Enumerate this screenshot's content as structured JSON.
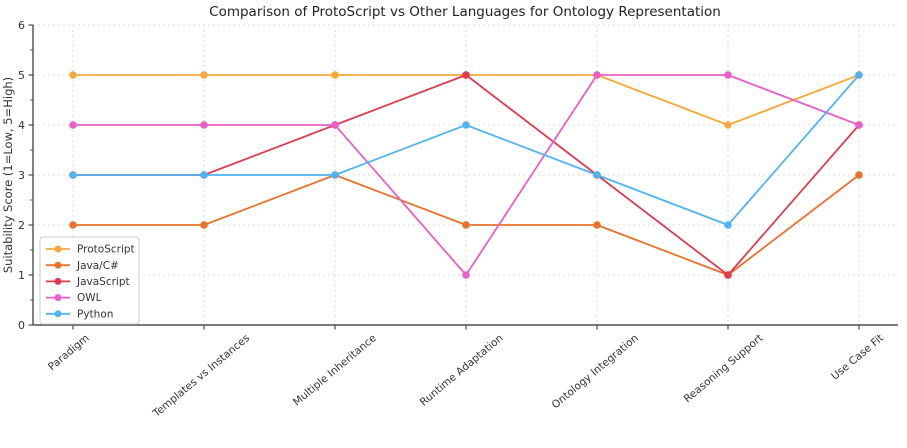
{
  "chart_data": {
    "type": "line",
    "title": "Comparison of ProtoScript vs Other Languages for Ontology Representation",
    "ylabel": "Suitability Score (1=Low, 5=High)",
    "xlabel": "",
    "ylim": [
      0,
      6
    ],
    "yticks": [
      0,
      1,
      2,
      3,
      4,
      5,
      6
    ],
    "grid": true,
    "grid_style": "dotted",
    "legend_position": "lower left",
    "marker": "circle",
    "categories": [
      "Paradigm",
      "Templates vs Instances",
      "Multiple Inheritance",
      "Runtime Adaptation",
      "Ontology Integration",
      "Reasoning Support",
      "Use Case Fit"
    ],
    "series": [
      {
        "name": "ProtoScript",
        "color": "#F5A93B",
        "values": [
          5,
          5,
          5,
          5,
          5,
          4,
          5
        ]
      },
      {
        "name": "Java/C#",
        "color": "#E8722C",
        "values": [
          2,
          2,
          3,
          2,
          2,
          1,
          3
        ]
      },
      {
        "name": "JavaScript",
        "color": "#E03A4E",
        "values": [
          3,
          3,
          4,
          5,
          3,
          1,
          4
        ]
      },
      {
        "name": "OWL",
        "color": "#E95EC9",
        "values": [
          4,
          4,
          4,
          1,
          5,
          5,
          4
        ]
      },
      {
        "name": "Python",
        "color": "#4FB4F0",
        "values": [
          3,
          3,
          3,
          4,
          3,
          2,
          5
        ]
      }
    ],
    "colors": {
      "grid": "#DBDBDB",
      "spine": "#4D4D4D",
      "tick_text": "#333333",
      "title_text": "#222222",
      "legend_border": "#CCCCCC",
      "legend_bg": "#FFFFFF",
      "background": "#FFFFFF"
    }
  }
}
